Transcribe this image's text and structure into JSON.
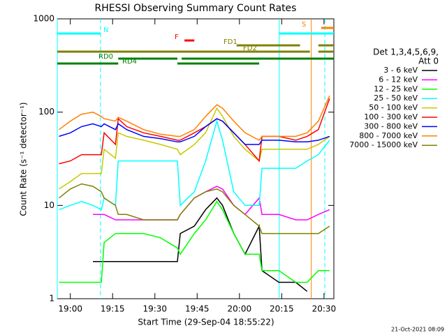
{
  "chart_data": {
    "type": "line",
    "title": "RHESSI Observing Summary Count Rates",
    "x_label": "Start Time (29-Sep-04 18:55:22)",
    "y_label": "Count Rate (s⁻¹ detector⁻¹)",
    "log_y": true,
    "xlim": [
      -4.63,
      93.5
    ],
    "ylim": [
      1,
      1000
    ],
    "xticks": [
      {
        "value": 0,
        "label": "19:00"
      },
      {
        "value": 15,
        "label": "19:15"
      },
      {
        "value": 30,
        "label": "19:30"
      },
      {
        "value": 45,
        "label": "19:45"
      },
      {
        "value": 60,
        "label": "20:00"
      },
      {
        "value": 75,
        "label": "20:15"
      },
      {
        "value": 90,
        "label": "20:30"
      }
    ],
    "yticks": [
      1,
      10,
      100,
      1000
    ],
    "legend_title": [
      "Det 1,3,4,5,6,9,",
      "Att 0"
    ],
    "footer": "21-Oct-2021 08:09",
    "x": [
      -4,
      0,
      4,
      8,
      11,
      12,
      16,
      17,
      20,
      26,
      32,
      38,
      39,
      44,
      48,
      52,
      54,
      58,
      62,
      67,
      68,
      74,
      80,
      84,
      88,
      92
    ],
    "series": [
      {
        "name": "3 - 6 keV",
        "color": "#000000",
        "values": [
          null,
          null,
          null,
          2.5,
          2.5,
          2.5,
          2.5,
          2.5,
          2.5,
          2.5,
          2.5,
          2.5,
          5,
          6,
          9,
          12,
          10,
          5,
          3,
          6,
          2,
          1.5,
          1.5,
          1.2,
          null,
          null
        ]
      },
      {
        "name": "6 - 12 keV",
        "color": "#ff00ff",
        "values": [
          null,
          null,
          null,
          8,
          8,
          8,
          7,
          7,
          7,
          7,
          7,
          7,
          8,
          12,
          14,
          16,
          15,
          10,
          8,
          12,
          8,
          8,
          7,
          7,
          8,
          9
        ]
      },
      {
        "name": "12 - 25 keV",
        "color": "#00ff00",
        "values": [
          1.5,
          1.5,
          1.5,
          1.5,
          1.5,
          4,
          5,
          5,
          5,
          5,
          4.5,
          3.5,
          3,
          5,
          7,
          11,
          9,
          5,
          3,
          3,
          2,
          2,
          1.5,
          1.5,
          2,
          2
        ]
      },
      {
        "name": "25 - 50 keV",
        "color": "#00ffff",
        "values": [
          9,
          10,
          11,
          10,
          9,
          12,
          10,
          30,
          30,
          30,
          30,
          30,
          10,
          14,
          30,
          80,
          50,
          14,
          10,
          10,
          25,
          25,
          25,
          30,
          35,
          50
        ]
      },
      {
        "name": "50 - 100 keV",
        "color": "#c8c800",
        "values": [
          15,
          18,
          22,
          22,
          22,
          40,
          32,
          60,
          55,
          50,
          45,
          40,
          35,
          45,
          60,
          110,
          90,
          55,
          40,
          30,
          40,
          40,
          40,
          40,
          45,
          55
        ]
      },
      {
        "name": "100 - 300 keV",
        "color": "#ff0000",
        "values": [
          28,
          30,
          35,
          35,
          35,
          60,
          45,
          85,
          70,
          60,
          55,
          50,
          50,
          60,
          70,
          85,
          80,
          60,
          45,
          30,
          55,
          55,
          50,
          55,
          65,
          140
        ]
      },
      {
        "name": "300 - 800 keV",
        "color": "#0000ff",
        "values": [
          55,
          60,
          70,
          75,
          70,
          75,
          65,
          75,
          65,
          55,
          52,
          48,
          48,
          55,
          70,
          85,
          80,
          60,
          45,
          45,
          50,
          50,
          48,
          48,
          50,
          55
        ]
      },
      {
        "name": "800 - 7000 keV",
        "color": "#ff8000",
        "values": [
          65,
          80,
          95,
          100,
          90,
          85,
          80,
          88,
          80,
          65,
          58,
          55,
          55,
          65,
          90,
          120,
          110,
          80,
          60,
          50,
          55,
          55,
          55,
          60,
          80,
          150
        ]
      },
      {
        "name": "7000 - 15000 keV",
        "color": "#808000",
        "values": [
          12,
          15,
          17,
          16,
          14,
          12,
          10,
          8,
          8,
          7,
          7,
          7,
          8,
          12,
          14,
          15,
          14,
          10,
          8,
          6,
          5,
          5,
          5,
          5,
          5,
          6
        ]
      }
    ],
    "flags": [
      {
        "label": "N",
        "color": "#00ffff",
        "ranges": [
          [
            -4.63,
            10.8
          ],
          [
            74,
            93.5
          ]
        ]
      },
      {
        "label": "S",
        "color": "#ff8000",
        "ranges": [
          [
            89,
            93.5
          ]
        ]
      },
      {
        "label": "F",
        "color": "#ff0000",
        "ranges": [
          [
            40.5,
            44
          ]
        ]
      },
      {
        "label": "FD1",
        "color": "#808000",
        "ranges": [
          [
            59,
            81.5
          ],
          [
            88,
            93.5
          ]
        ]
      },
      {
        "label": "FD2",
        "color": "#808000",
        "ranges": [
          [
            -4.63,
            85
          ],
          [
            88,
            93.5
          ]
        ]
      },
      {
        "label": "RD0",
        "color": "#008000",
        "ranges": [
          [
            17,
            38
          ],
          [
            39.5,
            93.5
          ]
        ]
      },
      {
        "label": "RD4",
        "color": "#008000",
        "ranges": [
          [
            -4.63,
            17
          ],
          [
            38,
            67
          ]
        ]
      }
    ],
    "vlines": [
      {
        "x": -4.63,
        "color": "#00ffff",
        "dashed": false
      },
      {
        "x": 10.7,
        "color": "#00ffff",
        "dashed": true
      },
      {
        "x": 74.1,
        "color": "#00ffff",
        "dashed": false
      },
      {
        "x": 85.5,
        "color": "#ff8000",
        "dashed": false
      },
      {
        "x": 90.3,
        "color": "#00ffff",
        "dashed": true
      }
    ]
  }
}
